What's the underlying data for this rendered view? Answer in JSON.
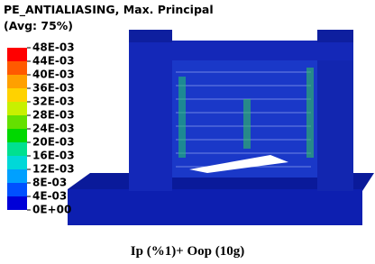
{
  "legend": {
    "title": [
      "PE_ANTIALIASING, Max. Principal",
      "(Avg: 75%)"
    ],
    "labels": [
      "48E-03",
      "44E-03",
      "40E-03",
      "36E-03",
      "32E-03",
      "28E-03",
      "24E-03",
      "20E-03",
      "16E-03",
      "12E-03",
      "8E-03",
      "4E-03",
      "0E+00"
    ],
    "colors": [
      "#ff0000",
      "#ff5a00",
      "#ffa000",
      "#ffd200",
      "#c8f000",
      "#64e000",
      "#00d800",
      "#00e090",
      "#00d8d8",
      "#00a0ff",
      "#0050ff",
      "#0000d8"
    ]
  },
  "caption": "Ip (%1)+ Oop (10g)"
}
